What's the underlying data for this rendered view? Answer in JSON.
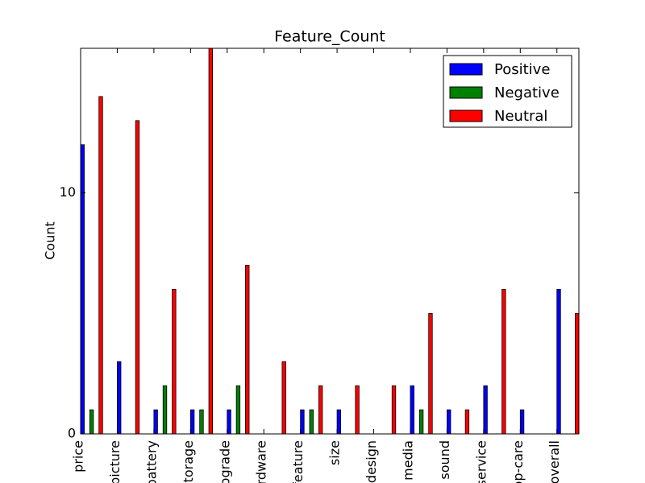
{
  "chart_data": {
    "type": "bar",
    "title": "Feature_Count",
    "y_label": "Count",
    "categories": [
      "price",
      "picture",
      "battery",
      "storage",
      "upgrade",
      "hardware",
      "feature",
      "size",
      "design",
      "media",
      "sound",
      "service",
      "app-care",
      "overall"
    ],
    "series": [
      {
        "name": "Positive",
        "color": "#0000ff",
        "values": [
          12,
          3,
          1,
          1,
          1,
          0,
          1,
          1,
          0,
          2,
          1,
          2,
          1,
          6
        ]
      },
      {
        "name": "Negative",
        "color": "#008000",
        "values": [
          1,
          0,
          2,
          1,
          2,
          0,
          1,
          0,
          0,
          1,
          0,
          0,
          0,
          0
        ]
      },
      {
        "name": "Neutral",
        "color": "#ff0000",
        "values": [
          14,
          13,
          6,
          16,
          7,
          3,
          2,
          2,
          2,
          5,
          1,
          6,
          0,
          5
        ]
      }
    ],
    "ylim": [
      0,
      16
    ],
    "yticks": [
      0,
      10
    ],
    "legend": "upper right"
  }
}
